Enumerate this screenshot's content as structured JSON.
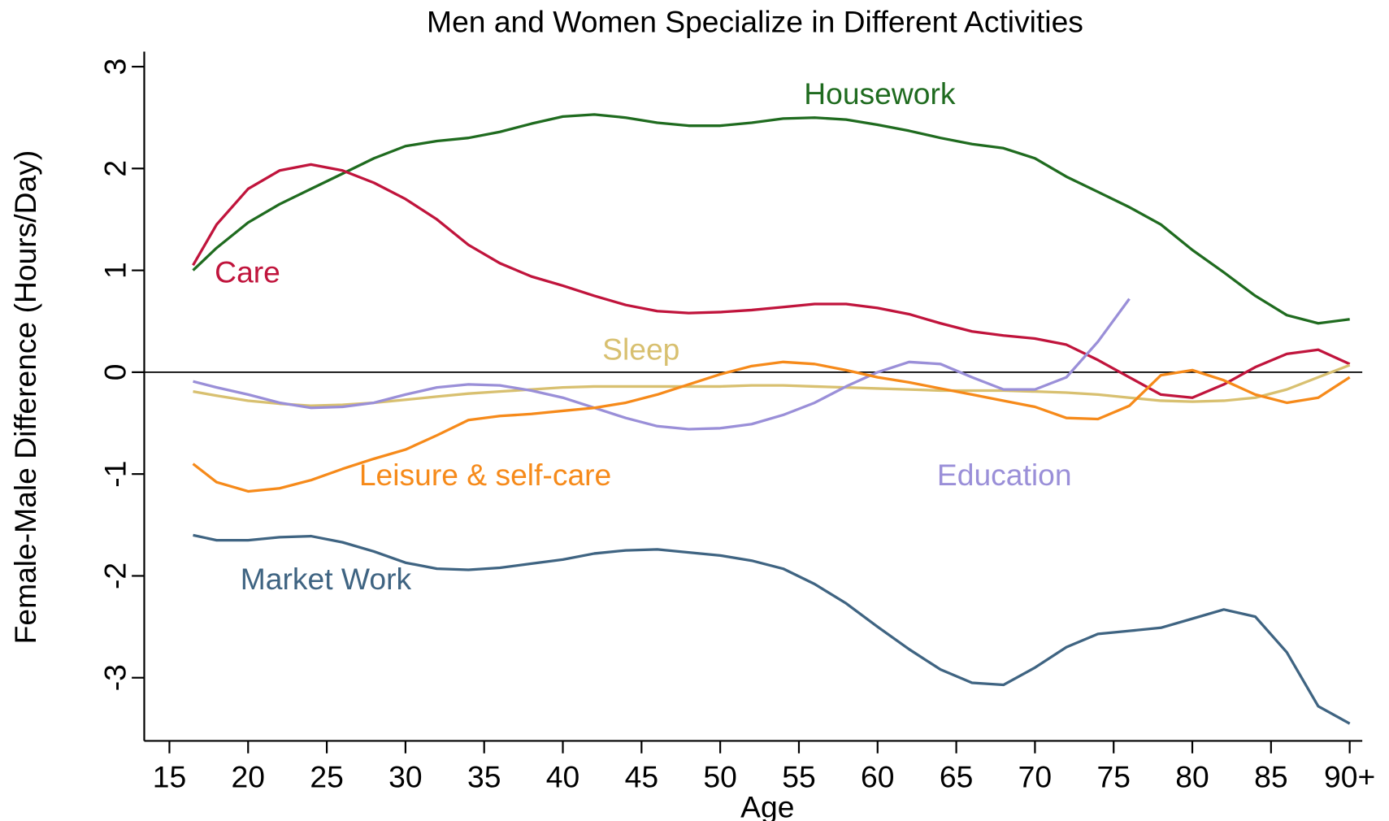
{
  "chart_data": {
    "type": "line",
    "title": "Men and Women Specialize in Different Activities",
    "x_label": "Age",
    "y_label": "Female-Male Difference (Hours/Day)",
    "x": [
      16.5,
      18,
      20,
      22,
      24,
      26,
      28,
      30,
      32,
      34,
      36,
      38,
      40,
      42,
      44,
      46,
      48,
      50,
      52,
      54,
      56,
      58,
      60,
      62,
      64,
      66,
      68,
      70,
      72,
      74,
      76,
      78,
      80,
      82,
      84,
      86,
      88,
      90
    ],
    "series": [
      {
        "name": "Housework",
        "color": "#1f6b1f",
        "values": [
          1.0,
          1.22,
          1.47,
          1.65,
          1.8,
          1.95,
          2.1,
          2.22,
          2.27,
          2.3,
          2.36,
          2.44,
          2.51,
          2.53,
          2.5,
          2.45,
          2.42,
          2.42,
          2.45,
          2.49,
          2.5,
          2.48,
          2.43,
          2.37,
          2.3,
          2.24,
          2.2,
          2.1,
          1.92,
          1.77,
          1.62,
          1.45,
          1.2,
          0.98,
          0.75,
          0.56,
          0.48,
          0.52
        ]
      },
      {
        "name": "Care",
        "color": "#c0143c",
        "values": [
          1.05,
          1.45,
          1.8,
          1.98,
          2.04,
          1.98,
          1.86,
          1.7,
          1.5,
          1.25,
          1.07,
          0.94,
          0.85,
          0.75,
          0.66,
          0.6,
          0.58,
          0.59,
          0.61,
          0.64,
          0.67,
          0.67,
          0.63,
          0.57,
          0.48,
          0.4,
          0.36,
          0.33,
          0.27,
          0.12,
          -0.05,
          -0.22,
          -0.25,
          -0.12,
          0.05,
          0.18,
          0.22,
          0.08
        ]
      },
      {
        "name": "Sleep",
        "color": "#d8c070",
        "values": [
          -0.19,
          -0.23,
          -0.28,
          -0.31,
          -0.33,
          -0.32,
          -0.3,
          -0.27,
          -0.24,
          -0.21,
          -0.19,
          -0.17,
          -0.15,
          -0.14,
          -0.14,
          -0.14,
          -0.14,
          -0.14,
          -0.13,
          -0.13,
          -0.14,
          -0.15,
          -0.16,
          -0.17,
          -0.18,
          -0.18,
          -0.18,
          -0.19,
          -0.2,
          -0.22,
          -0.25,
          -0.28,
          -0.29,
          -0.28,
          -0.25,
          -0.17,
          -0.05,
          0.07
        ]
      },
      {
        "name": "Education",
        "color": "#9a8fd8",
        "values": [
          -0.09,
          -0.15,
          -0.22,
          -0.3,
          -0.35,
          -0.34,
          -0.3,
          -0.22,
          -0.15,
          -0.12,
          -0.13,
          -0.18,
          -0.25,
          -0.35,
          -0.45,
          -0.53,
          -0.56,
          -0.55,
          -0.51,
          -0.42,
          -0.3,
          -0.14,
          0.0,
          0.1,
          0.08,
          -0.05,
          -0.17,
          -0.17,
          -0.05,
          0.3,
          0.72,
          null,
          null,
          null,
          null,
          null,
          null,
          null
        ]
      },
      {
        "name": "Leisure & self-care",
        "color": "#f68a1a",
        "values": [
          -0.9,
          -1.08,
          -1.17,
          -1.14,
          -1.06,
          -0.95,
          -0.85,
          -0.76,
          -0.62,
          -0.47,
          -0.43,
          -0.41,
          -0.38,
          -0.35,
          -0.3,
          -0.22,
          -0.12,
          -0.02,
          0.06,
          0.1,
          0.08,
          0.02,
          -0.05,
          -0.1,
          -0.16,
          -0.22,
          -0.28,
          -0.34,
          -0.45,
          -0.46,
          -0.33,
          -0.03,
          0.02,
          -0.08,
          -0.22,
          -0.3,
          -0.25,
          -0.05
        ]
      },
      {
        "name": "Market Work",
        "color": "#3f6482",
        "values": [
          -1.6,
          -1.65,
          -1.65,
          -1.62,
          -1.61,
          -1.67,
          -1.76,
          -1.87,
          -1.93,
          -1.94,
          -1.92,
          -1.88,
          -1.84,
          -1.78,
          -1.75,
          -1.74,
          -1.77,
          -1.8,
          -1.85,
          -1.93,
          -2.08,
          -2.27,
          -2.5,
          -2.72,
          -2.92,
          -3.05,
          -3.07,
          -2.9,
          -2.7,
          -2.57,
          -2.54,
          -2.51,
          -2.42,
          -2.33,
          -2.4,
          -2.75,
          -3.28,
          -3.45
        ]
      }
    ],
    "xlim": [
      13.4,
      90.8
    ],
    "xticks": [
      15,
      20,
      25,
      30,
      35,
      40,
      45,
      50,
      55,
      60,
      65,
      70,
      75,
      80,
      85,
      {
        "value": 90,
        "label": "90+"
      }
    ],
    "ylim": [
      -3.62,
      3.13
    ],
    "yticks": [
      -3,
      -2,
      -1,
      0,
      1,
      2,
      3
    ],
    "reference_line": 0,
    "legend": "inline"
  }
}
